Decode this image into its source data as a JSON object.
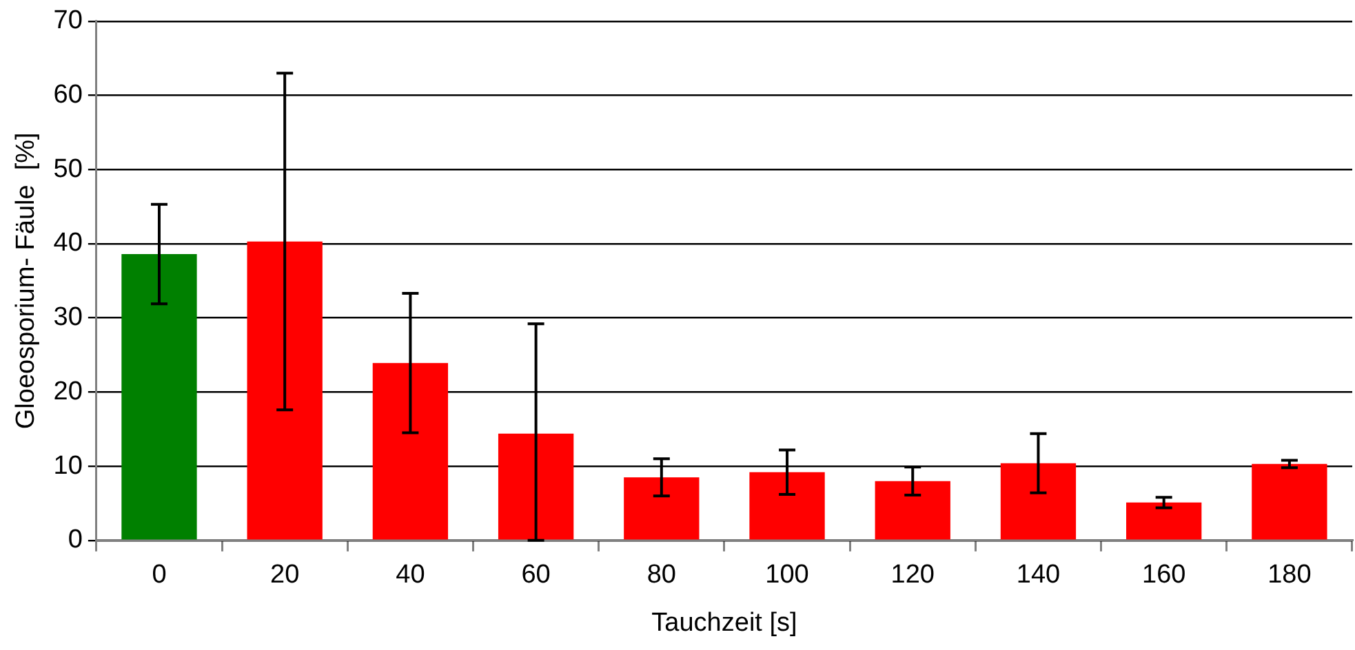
{
  "chart_data": {
    "type": "bar",
    "xlabel": "Tauchzeit [s]",
    "ylabel": "Gloeosporium- Fäule  [%]",
    "categories": [
      "0",
      "20",
      "40",
      "60",
      "80",
      "100",
      "120",
      "140",
      "160",
      "180"
    ],
    "values": [
      38.6,
      40.3,
      23.9,
      14.4,
      8.5,
      9.2,
      8.0,
      10.4,
      5.1,
      10.3
    ],
    "errors": [
      6.7,
      22.7,
      9.4,
      [
        0,
        29.2
      ],
      2.5,
      3.0,
      1.9,
      4.0,
      0.7,
      0.5
    ],
    "colors": [
      "#008000",
      "#ff0000",
      "#ff0000",
      "#ff0000",
      "#ff0000",
      "#ff0000",
      "#ff0000",
      "#ff0000",
      "#ff0000",
      "#ff0000"
    ],
    "ylim": [
      0,
      70
    ],
    "yticks": [
      0,
      10,
      20,
      30,
      40,
      50,
      60,
      70
    ],
    "grid": "y",
    "legend": false
  }
}
